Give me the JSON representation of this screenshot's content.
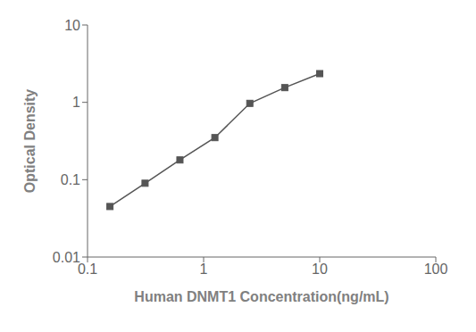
{
  "chart_data": {
    "type": "line",
    "xlabel": "Human DNMT1 Concentration(ng/mL)",
    "ylabel": "Optical Density",
    "x": [
      0.156,
      0.313,
      0.625,
      1.25,
      2.5,
      5.0,
      10.0
    ],
    "values": [
      0.045,
      0.09,
      0.18,
      0.35,
      0.97,
      1.55,
      2.35
    ],
    "xlim": [
      0.1,
      100
    ],
    "ylim": [
      0.01,
      10
    ],
    "xticks": [
      0.1,
      1,
      10,
      100
    ],
    "yticks": [
      0.01,
      0.1,
      1,
      10
    ],
    "log": true,
    "marker": "square",
    "color": "#555555"
  }
}
